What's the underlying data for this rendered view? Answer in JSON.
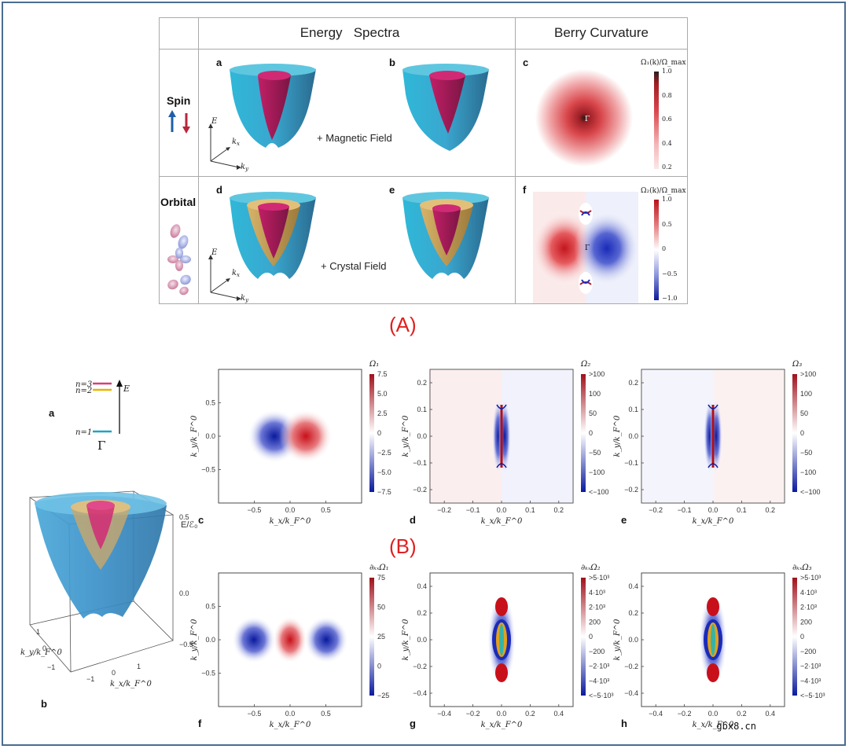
{
  "panelA": {
    "headers": {
      "energy": "Energy   Spectra",
      "berry": "Berry Curvature"
    },
    "rows": [
      {
        "label": "Spin",
        "field": "+ Magnetic Field"
      },
      {
        "label": "Orbital",
        "field": "+ Crystal Field"
      }
    ],
    "panel_letters": [
      "a",
      "b",
      "c",
      "d",
      "e",
      "f"
    ],
    "axis_labels": {
      "E": "E",
      "kx": "k",
      "kx_sub": "x",
      "ky": "k",
      "ky_sub": "y"
    },
    "c_title": "Ω₁(k)/Ω_max",
    "c_ticks": [
      "1.0",
      "0.8",
      "0.6",
      "0.4",
      "0.2"
    ],
    "f_title": "Ω₂(k)/Ω_max",
    "f_ticks": [
      "1.0",
      "0.5",
      "0",
      "−0.5",
      "−1.0"
    ],
    "gamma": "Γ",
    "caption": "(A)"
  },
  "panelB": {
    "caption": "(B)",
    "a": {
      "letter": "a",
      "levels": [
        "n=3",
        "n=2",
        "n=1"
      ],
      "E": "E",
      "gamma": "Γ",
      "colors": [
        "#d6407a",
        "#e8b400",
        "#1fa3c4"
      ]
    },
    "b": {
      "letter": "b",
      "zlabel": "E/ℰ₀",
      "zticks": [
        "0.5",
        "0.0",
        "−0.5"
      ],
      "yticks": [
        "1",
        "0",
        "−1"
      ],
      "xticks": [
        "−1",
        "0",
        "1"
      ],
      "ylabel": "k_y/k_F^0",
      "xlabel": "k_x/k_F^0"
    },
    "plots": [
      {
        "letter": "c",
        "cb_title": "Ω₁",
        "cb_ticks": [
          "7.5",
          "5.0",
          "2.5",
          "0",
          "−2.5",
          "−5.0",
          "−7.5"
        ],
        "xticks": [
          "−0.5",
          "0.0",
          "0.5"
        ],
        "yticks": [
          "0.5",
          "0.0",
          "−0.5"
        ]
      },
      {
        "letter": "d",
        "cb_title": "Ω₂",
        "cb_ticks": [
          ">100",
          "100",
          "50",
          "0",
          "−50",
          "−100",
          "<−100"
        ],
        "xticks": [
          "−0.2",
          "−0.1",
          "0.0",
          "0.1",
          "0.2"
        ],
        "yticks": [
          "0.2",
          "0.1",
          "0.0",
          "−0.1",
          "−0.2"
        ]
      },
      {
        "letter": "e",
        "cb_title": "Ω₃",
        "cb_ticks": [
          ">100",
          "100",
          "50",
          "0",
          "−50",
          "−100",
          "<−100"
        ],
        "xticks": [
          "−0.2",
          "−0.1",
          "0.0",
          "0.1",
          "0.2"
        ],
        "yticks": [
          "0.2",
          "0.1",
          "0.0",
          "−0.1",
          "−0.2"
        ]
      },
      {
        "letter": "f",
        "cb_title": "∂ₖₓΩ₁",
        "cb_ticks": [
          "75",
          "50",
          "25",
          "0",
          "−25"
        ],
        "xticks": [
          "−0.5",
          "0.0",
          "0.5"
        ],
        "yticks": [
          "0.5",
          "0.0",
          "−0.5"
        ]
      },
      {
        "letter": "g",
        "cb_title": "∂ₖₓΩ₂",
        "cb_ticks": [
          ">5·10³",
          "4·10³",
          "2·10³",
          "200",
          "0",
          "−200",
          "−2·10³",
          "−4·10³",
          "<−5·10³"
        ],
        "xticks": [
          "−0.4",
          "−0.2",
          "0.0",
          "0.2",
          "0.4"
        ],
        "yticks": [
          "0.4",
          "0.2",
          "0.0",
          "−0.2",
          "−0.4"
        ]
      },
      {
        "letter": "h",
        "cb_title": "∂ₖₓΩ₃",
        "cb_ticks": [
          ">5·10³",
          "4·10³",
          "2·10³",
          "200",
          "0",
          "−200",
          "−2·10³",
          "−4·10³",
          "<−5·10³"
        ],
        "xticks": [
          "−0.4",
          "−0.2",
          "0.0",
          "0.2",
          "0.4"
        ],
        "yticks": [
          "0.4",
          "0.2",
          "0.0",
          "−0.2",
          "−0.4"
        ]
      }
    ],
    "xlabel": "k_x/k_F^0",
    "ylabel": "k_y/k_F^0"
  },
  "watermark": "gbx8.cn"
}
